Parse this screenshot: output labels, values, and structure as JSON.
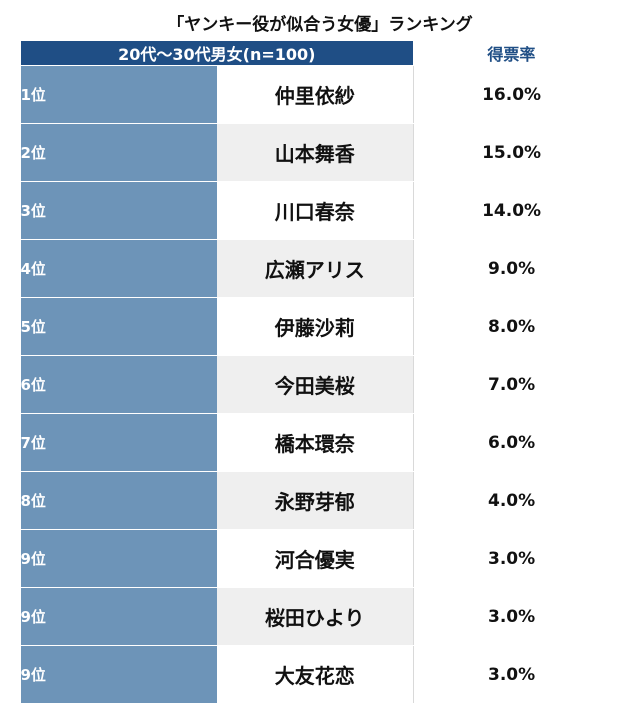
{
  "title": "「ヤンキー役が似合う女優」ランキング",
  "chart_data": {
    "type": "table",
    "title": "「ヤンキー役が似合う女優」ランキング",
    "group_header": "20代〜30代男女(n=100)",
    "rate_header": "得票率",
    "rows": [
      {
        "rank": "1位",
        "name": "仲里依紗",
        "rate": "16.0%"
      },
      {
        "rank": "2位",
        "name": "山本舞香",
        "rate": "15.0%"
      },
      {
        "rank": "3位",
        "name": "川口春奈",
        "rate": "14.0%"
      },
      {
        "rank": "4位",
        "name": "広瀬アリス",
        "rate": "9.0%"
      },
      {
        "rank": "5位",
        "name": "伊藤沙莉",
        "rate": "8.0%"
      },
      {
        "rank": "6位",
        "name": "今田美桜",
        "rate": "7.0%"
      },
      {
        "rank": "7位",
        "name": "橋本環奈",
        "rate": "6.0%"
      },
      {
        "rank": "8位",
        "name": "永野芽郁",
        "rate": "4.0%"
      },
      {
        "rank": "9位",
        "name": "河合優実",
        "rate": "3.0%"
      },
      {
        "rank": "9位",
        "name": "桜田ひより",
        "rate": "3.0%"
      },
      {
        "rank": "9位",
        "name": "大友花恋",
        "rate": "3.0%"
      }
    ]
  }
}
